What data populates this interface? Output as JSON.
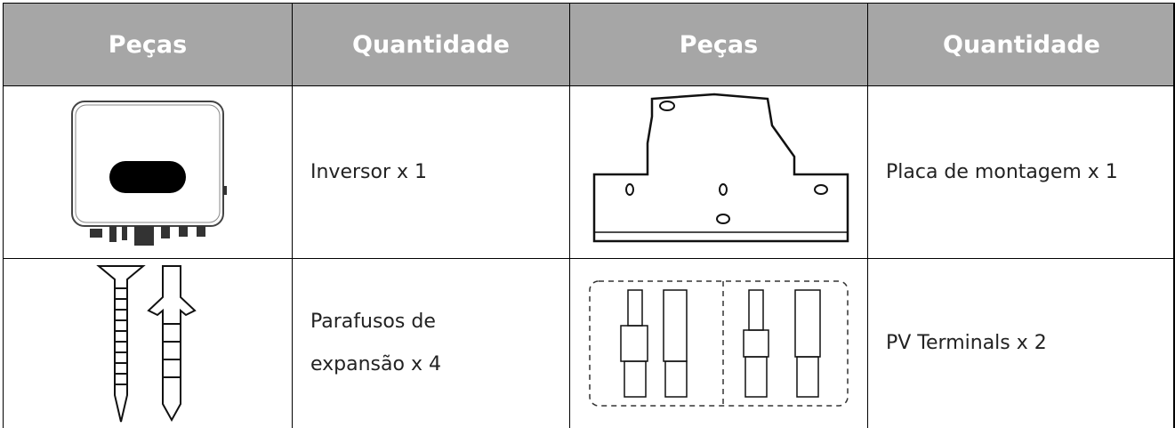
{
  "table": {
    "header": [
      "Peças",
      "Quantidade",
      "Peças",
      "Quantidade"
    ],
    "rows": [
      {
        "left": [
          "Inversor x 1"
        ],
        "right": [
          "Placa de montagem x 1"
        ]
      },
      {
        "left": [
          "Parafusos de",
          "expansão x 4"
        ],
        "right": [
          "PV Terminals x 2"
        ]
      }
    ]
  }
}
